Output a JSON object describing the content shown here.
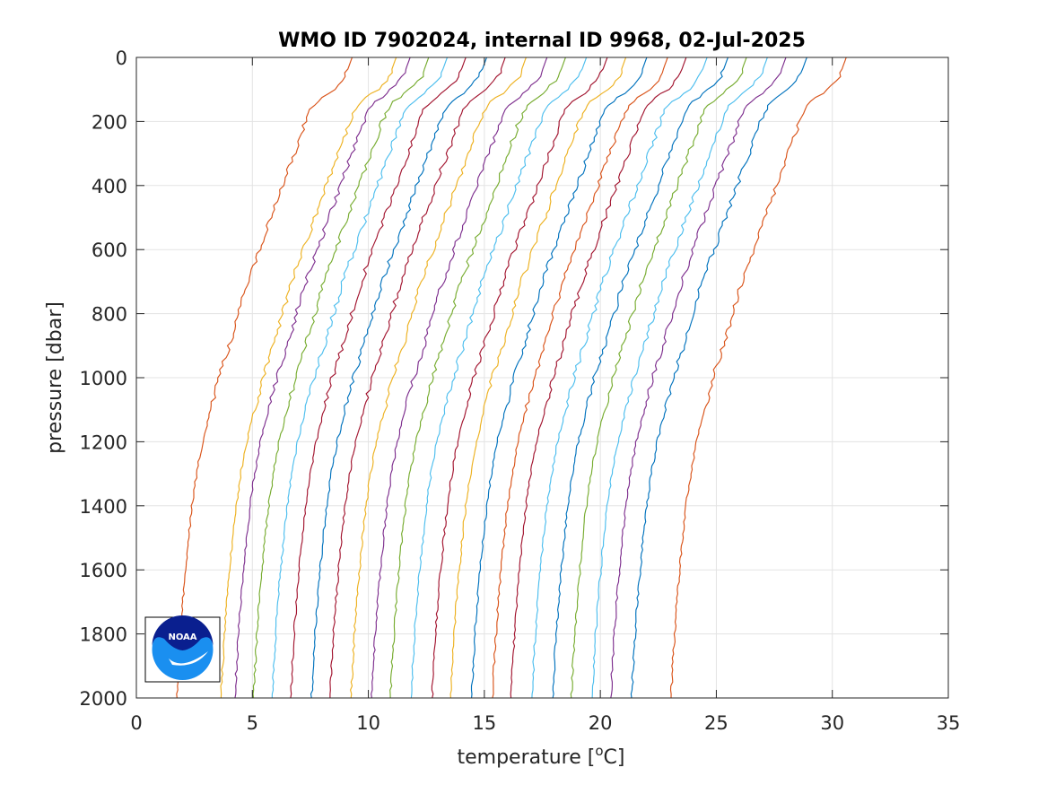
{
  "chart_data": {
    "type": "line",
    "title": "WMO ID 7902024, internal ID 9968, 02-Jul-2025",
    "xlabel": "temperature [",
    "xlabel_sup": "o",
    "xlabel_unit": "C]",
    "ylabel": "pressure [dbar]",
    "xlim": [
      0,
      35
    ],
    "ylim": [
      2000,
      0
    ],
    "y_reversed": true,
    "xticks": [
      "0",
      "5",
      "10",
      "15",
      "20",
      "25",
      "30",
      "35"
    ],
    "yticks": [
      "0",
      "200",
      "400",
      "600",
      "800",
      "1000",
      "1200",
      "1400",
      "1600",
      "1800",
      "2000"
    ],
    "grid": true,
    "logo": "NOAA",
    "profile_shape": {
      "pressure": [
        0,
        60,
        100,
        150,
        200,
        300,
        400,
        500,
        600,
        700,
        800,
        900,
        1000,
        1100,
        1200,
        1300,
        1400,
        1500,
        1600,
        1700,
        1800,
        1900,
        2000
      ],
      "temperature_offset": [
        0,
        -0.3,
        -0.8,
        -1.7,
        -2.0,
        -2.5,
        -3.0,
        -3.5,
        -4.0,
        -4.5,
        -4.9,
        -5.3,
        -5.75,
        -6.1,
        -6.45,
        -6.7,
        -6.9,
        -7.05,
        -7.18,
        -7.3,
        -7.4,
        -7.48,
        -7.55
      ]
    },
    "series": [
      {
        "surface_temp": 9.3,
        "color": "#D95319"
      },
      {
        "surface_temp": 11.2,
        "color": "#EDB120"
      },
      {
        "surface_temp": 11.8,
        "color": "#7E2F8E"
      },
      {
        "surface_temp": 12.6,
        "color": "#77AC30"
      },
      {
        "surface_temp": 13.4,
        "color": "#4DBEEE"
      },
      {
        "surface_temp": 14.2,
        "color": "#A2142F"
      },
      {
        "surface_temp": 15.1,
        "color": "#0072BD"
      },
      {
        "surface_temp": 15.9,
        "color": "#A2142F"
      },
      {
        "surface_temp": 16.8,
        "color": "#EDB120"
      },
      {
        "surface_temp": 17.7,
        "color": "#7E2F8E"
      },
      {
        "surface_temp": 18.5,
        "color": "#77AC30"
      },
      {
        "surface_temp": 19.4,
        "color": "#4DBEEE"
      },
      {
        "surface_temp": 20.3,
        "color": "#A2142F"
      },
      {
        "surface_temp": 21.1,
        "color": "#EDB120"
      },
      {
        "surface_temp": 22.0,
        "color": "#0072BD"
      },
      {
        "surface_temp": 22.9,
        "color": "#D95319"
      },
      {
        "surface_temp": 23.7,
        "color": "#A2142F"
      },
      {
        "surface_temp": 24.6,
        "color": "#4DBEEE"
      },
      {
        "surface_temp": 25.5,
        "color": "#0072BD"
      },
      {
        "surface_temp": 26.3,
        "color": "#77AC30"
      },
      {
        "surface_temp": 27.2,
        "color": "#4DBEEE"
      },
      {
        "surface_temp": 28.0,
        "color": "#7E2F8E"
      },
      {
        "surface_temp": 28.9,
        "color": "#0072BD"
      },
      {
        "surface_temp": 30.6,
        "color": "#D95319"
      }
    ]
  }
}
